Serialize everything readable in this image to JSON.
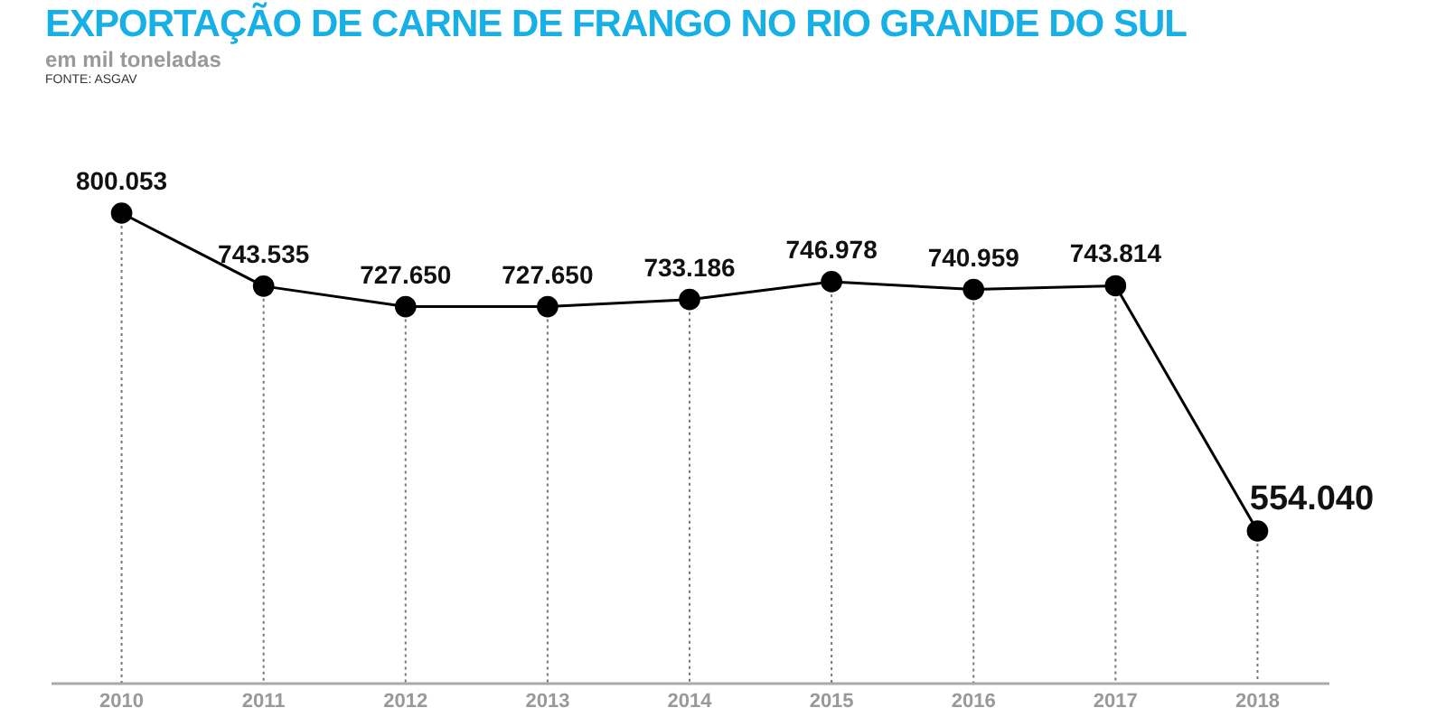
{
  "chart_data": {
    "type": "line",
    "title": "EXPORTAÇÃO DE CARNE DE FRANGO NO RIO GRANDE DO SUL",
    "subtitle": "em mil toneladas",
    "annotations": [
      "FONTE: ASGAV"
    ],
    "categories": [
      "2010",
      "2011",
      "2012",
      "2013",
      "2014",
      "2015",
      "2016",
      "2017",
      "2018"
    ],
    "series": [
      {
        "color": "#000000",
        "values": [
          800.053,
          743.535,
          727.65,
          727.65,
          733.186,
          746.978,
          740.959,
          743.814,
          554.04
        ],
        "value_labels": [
          "800.053",
          "743.535",
          "727.650",
          "727.650",
          "733.186",
          "746.978",
          "740.959",
          "743.814",
          "554.040"
        ]
      }
    ],
    "tick_labels": "x",
    "marker": "circle",
    "line_style": "solid",
    "grid": "x",
    "legend": false
  }
}
